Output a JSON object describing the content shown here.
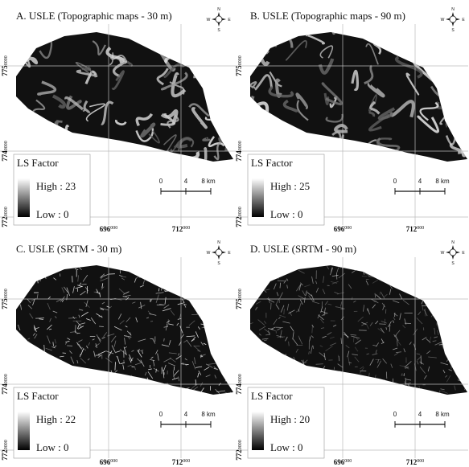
{
  "compass": {
    "n": "N",
    "e": "E",
    "s": "S",
    "w": "W"
  },
  "panels": [
    {
      "title": "A. USLE (Topographic maps - 30 m)",
      "legend": {
        "title": "LS Factor",
        "high": "High : 23",
        "low": "Low : 0"
      },
      "scale": [
        "0",
        "4",
        "8 km"
      ],
      "x_labels": [
        {
          "main": "696",
          "sup": "000"
        },
        {
          "main": "712",
          "sup": "000"
        }
      ],
      "y_labels": [
        {
          "main": "775",
          "sup": "0000"
        },
        {
          "main": "774",
          "sup": "0000"
        },
        {
          "main": "772",
          "sup": "0000"
        }
      ]
    },
    {
      "title": "B. USLE (Topographic maps - 90 m)",
      "legend": {
        "title": "LS Factor",
        "high": "High : 25",
        "low": "Low : 0"
      },
      "scale": [
        "0",
        "4",
        "8 km"
      ],
      "x_labels": [
        {
          "main": "696",
          "sup": "000"
        },
        {
          "main": "712",
          "sup": "000"
        }
      ],
      "y_labels": [
        {
          "main": "775",
          "sup": "0000"
        },
        {
          "main": "774",
          "sup": "0000"
        },
        {
          "main": "772",
          "sup": "0000"
        }
      ]
    },
    {
      "title": "C. USLE (SRTM - 30 m)",
      "legend": {
        "title": "LS Factor",
        "high": "High : 22",
        "low": "Low : 0"
      },
      "scale": [
        "0",
        "4",
        "8 km"
      ],
      "x_labels": [
        {
          "main": "696",
          "sup": "000"
        },
        {
          "main": "712",
          "sup": "000"
        }
      ],
      "y_labels": [
        {
          "main": "775",
          "sup": "0000"
        },
        {
          "main": "774",
          "sup": "0000"
        },
        {
          "main": "772",
          "sup": "0000"
        }
      ]
    },
    {
      "title": "D. USLE (SRTM - 90 m)",
      "legend": {
        "title": "LS Factor",
        "high": "High : 20",
        "low": "Low : 0"
      },
      "scale": [
        "0",
        "4",
        "8 km"
      ],
      "x_labels": [
        {
          "main": "696",
          "sup": "000"
        },
        {
          "main": "712",
          "sup": "000"
        }
      ],
      "y_labels": [
        {
          "main": "775",
          "sup": "0000"
        },
        {
          "main": "774",
          "sup": "0000"
        },
        {
          "main": "772",
          "sup": "0000"
        }
      ]
    }
  ]
}
